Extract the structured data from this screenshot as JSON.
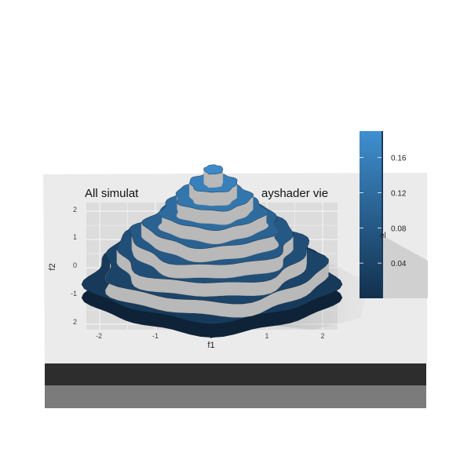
{
  "chart_data": {
    "type": "contour-3d",
    "title": "All simulat",
    "title_tail": "ayshader vie",
    "xlabel": "f1",
    "ylabel": "f2",
    "x_ticks": [
      "-2",
      "-1",
      "0",
      "1",
      "2"
    ],
    "y_ticks": [
      "2",
      "1",
      "0",
      "-1",
      "2"
    ],
    "legend": {
      "title_fragment": "el",
      "ticks": [
        "0.16",
        "0.12",
        "0.08",
        "0.04"
      ],
      "range": [
        0.0,
        0.19
      ],
      "color_low": "#12304c",
      "color_high": "#3f8fd0",
      "placement": "right"
    },
    "levels": [
      0.02,
      0.04,
      0.06,
      0.08,
      0.1,
      0.12,
      0.14,
      0.16,
      0.18
    ],
    "background": "#ebebeb",
    "grid": true
  }
}
